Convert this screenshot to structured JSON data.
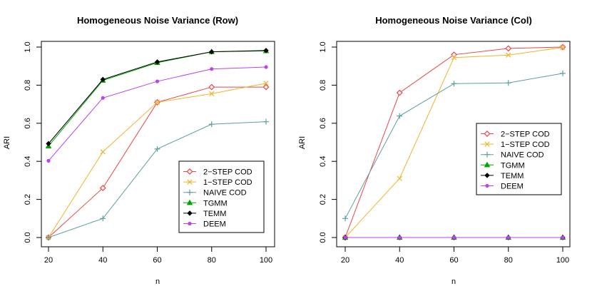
{
  "chart_data": [
    {
      "type": "line",
      "title": "Homogeneous Noise Variance (Row)",
      "xlabel": "n",
      "ylabel": "ARI",
      "x": [
        20,
        40,
        60,
        80,
        100
      ],
      "xlim": [
        20,
        100
      ],
      "ylim": [
        0,
        1
      ],
      "xticks": [
        "20",
        "40",
        "60",
        "80",
        "100"
      ],
      "yticks": [
        "0.0",
        "0.2",
        "0.4",
        "0.6",
        "0.8",
        "1.0"
      ],
      "legend_position": "bottom-right",
      "series": [
        {
          "name": "2−STEP COD",
          "color": "#e8474a",
          "marker": "diamond-open",
          "values": [
            0.0,
            0.26,
            0.71,
            0.79,
            0.79
          ]
        },
        {
          "name": "1−STEP COD",
          "color": "#f2b32a",
          "marker": "x",
          "values": [
            0.0,
            0.45,
            0.71,
            0.755,
            0.81
          ]
        },
        {
          "name": "NAIVE COD",
          "color": "#5f9ea0",
          "marker": "plus",
          "values": [
            0.0,
            0.1,
            0.465,
            0.595,
            0.608
          ]
        },
        {
          "name": "TGMM",
          "color": "#00a400",
          "marker": "triangle",
          "values": [
            0.48,
            0.825,
            0.918,
            0.975,
            0.98
          ]
        },
        {
          "name": "TEMM",
          "color": "#000000",
          "marker": "diamond",
          "values": [
            0.493,
            0.83,
            0.922,
            0.975,
            0.982
          ]
        },
        {
          "name": "DEEM",
          "color": "#bb44ee",
          "marker": "dot",
          "values": [
            0.403,
            0.733,
            0.82,
            0.885,
            0.895
          ]
        }
      ]
    },
    {
      "type": "line",
      "title": "Homogeneous Noise Variance (Col)",
      "xlabel": "n",
      "ylabel": "ARI",
      "x": [
        20,
        40,
        60,
        80,
        100
      ],
      "xlim": [
        20,
        100
      ],
      "ylim": [
        0,
        1
      ],
      "xticks": [
        "20",
        "40",
        "60",
        "80",
        "100"
      ],
      "yticks": [
        "0.0",
        "0.2",
        "0.4",
        "0.6",
        "0.8",
        "1.0"
      ],
      "legend_position": "center-right",
      "series": [
        {
          "name": "2−STEP COD",
          "color": "#e8474a",
          "marker": "diamond-open",
          "values": [
            0.0,
            0.76,
            0.96,
            0.993,
            1.0
          ]
        },
        {
          "name": "1−STEP COD",
          "color": "#f2b32a",
          "marker": "x",
          "values": [
            0.0,
            0.31,
            0.945,
            0.958,
            0.998
          ]
        },
        {
          "name": "NAIVE COD",
          "color": "#5f9ea0",
          "marker": "plus",
          "values": [
            0.1,
            0.638,
            0.808,
            0.812,
            0.862
          ]
        },
        {
          "name": "TGMM",
          "color": "#00a400",
          "marker": "triangle",
          "values": [
            0.0,
            0.0,
            0.0,
            0.0,
            0.0
          ]
        },
        {
          "name": "TEMM",
          "color": "#000000",
          "marker": "diamond",
          "values": [
            0.0,
            0.0,
            0.0,
            0.0,
            0.0
          ]
        },
        {
          "name": "DEEM",
          "color": "#bb44ee",
          "marker": "dot",
          "values": [
            0.0,
            0.0,
            0.0,
            0.0,
            0.0
          ]
        }
      ]
    }
  ]
}
